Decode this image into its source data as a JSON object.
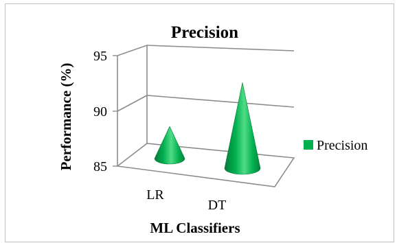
{
  "chart_data": {
    "type": "bar",
    "shape": "cone-3d",
    "title": "Precision",
    "xlabel": "ML Classifiers",
    "ylabel": "Performance (%)",
    "categories": [
      "LR",
      "DT"
    ],
    "series": [
      {
        "name": "Precision",
        "values": [
          87.4,
          91.4
        ],
        "color": "#00b050"
      }
    ],
    "yticks": [
      85,
      90,
      95
    ],
    "ylim": [
      85,
      95
    ],
    "grid": true,
    "legend": "right"
  }
}
